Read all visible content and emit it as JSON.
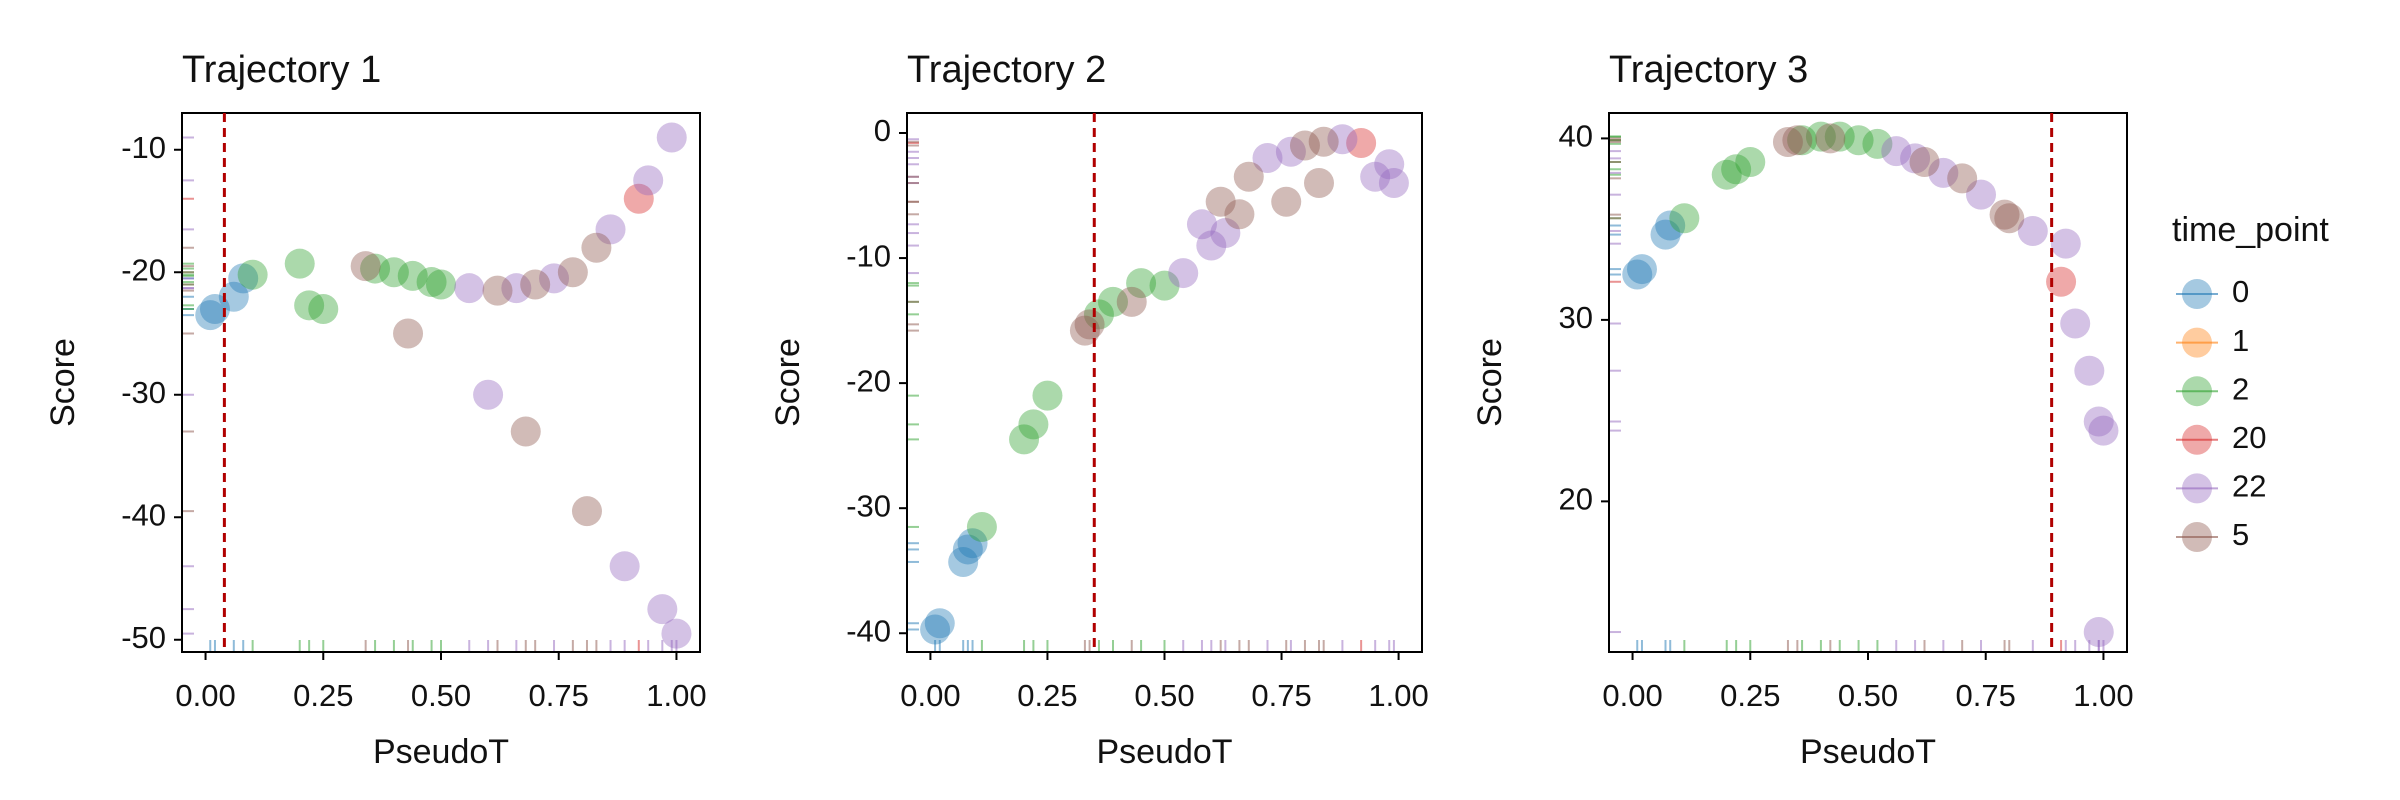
{
  "chart_data": [
    {
      "type": "scatter",
      "title": "Trajectory 1",
      "x_label": "PseudoT",
      "y_label": "Score",
      "xlim": [
        -0.05,
        1.05
      ],
      "xticks": [
        {
          "value": 0,
          "label": "0.00"
        },
        {
          "value": 0.25,
          "label": "0.25"
        },
        {
          "value": 0.5,
          "label": "0.50"
        },
        {
          "value": 0.75,
          "label": "0.75"
        },
        {
          "value": 1,
          "label": "1.00"
        }
      ],
      "ylim": [
        -51,
        -7
      ],
      "yticks": [
        -50,
        -40,
        -30,
        -20,
        -10
      ],
      "vline": 0.04,
      "vline_color": "#b00000",
      "series": [
        {
          "name": "0",
          "color": "#1f77b4",
          "x": [
            0.01,
            0.02,
            0.06,
            0.08
          ],
          "values": [
            -23.5,
            -23,
            -22,
            -20.5
          ]
        },
        {
          "name": "1",
          "color": "#ff7f0e",
          "x": [],
          "values": []
        },
        {
          "name": "2",
          "color": "#2ca02c",
          "x": [
            0.1,
            0.2,
            0.22,
            0.25,
            0.36,
            0.4,
            0.44,
            0.48,
            0.5
          ],
          "values": [
            -20.2,
            -19.3,
            -22.7,
            -23,
            -19.7,
            -20,
            -20.3,
            -20.8,
            -21
          ]
        },
        {
          "name": "20",
          "color": "#d62728",
          "x": [
            0.92
          ],
          "values": [
            -14
          ]
        },
        {
          "name": "22",
          "color": "#9467bd",
          "x": [
            0.56,
            0.6,
            0.66,
            0.74,
            0.86,
            0.89,
            0.94,
            0.97,
            0.99,
            1.0
          ],
          "values": [
            -21.3,
            -30,
            -21.3,
            -20.5,
            -16.5,
            -44,
            -12.5,
            -47.5,
            -9,
            -49.5
          ]
        },
        {
          "name": "5",
          "color": "#8c564b",
          "x": [
            0.34,
            0.43,
            0.62,
            0.68,
            0.7,
            0.78,
            0.81,
            0.83
          ],
          "values": [
            -19.5,
            -25,
            -21.5,
            -33,
            -21,
            -20,
            -39.5,
            -18
          ]
        }
      ]
    },
    {
      "type": "scatter",
      "title": "Trajectory 2",
      "x_label": "PseudoT",
      "y_label": "Score",
      "xlim": [
        -0.05,
        1.05
      ],
      "xticks": [
        {
          "value": 0,
          "label": "0.00"
        },
        {
          "value": 0.25,
          "label": "0.25"
        },
        {
          "value": 0.5,
          "label": "0.50"
        },
        {
          "value": 0.75,
          "label": "0.75"
        },
        {
          "value": 1,
          "label": "1.00"
        }
      ],
      "ylim": [
        -41.5,
        1.6
      ],
      "yticks": [
        -40,
        -30,
        -20,
        -10,
        0
      ],
      "vline": 0.35,
      "vline_color": "#b00000",
      "series": [
        {
          "name": "0",
          "color": "#1f77b4",
          "x": [
            0.01,
            0.02,
            0.07,
            0.08,
            0.09
          ],
          "values": [
            -39.7,
            -39.2,
            -34.3,
            -33.3,
            -32.8
          ]
        },
        {
          "name": "1",
          "color": "#ff7f0e",
          "x": [],
          "values": []
        },
        {
          "name": "2",
          "color": "#2ca02c",
          "x": [
            0.11,
            0.2,
            0.22,
            0.25,
            0.36,
            0.39,
            0.45,
            0.5
          ],
          "values": [
            -31.5,
            -24.5,
            -23.3,
            -21,
            -14.5,
            -13.5,
            -12,
            -12.2
          ]
        },
        {
          "name": "20",
          "color": "#d62728",
          "x": [
            0.92
          ],
          "values": [
            -0.8
          ]
        },
        {
          "name": "22",
          "color": "#9467bd",
          "x": [
            0.54,
            0.58,
            0.6,
            0.63,
            0.72,
            0.77,
            0.88,
            0.95,
            0.98,
            0.99
          ],
          "values": [
            -11.2,
            -7.3,
            -9,
            -8,
            -2,
            -1.5,
            -0.5,
            -3.5,
            -2.5,
            -4
          ]
        },
        {
          "name": "5",
          "color": "#8c564b",
          "x": [
            0.33,
            0.34,
            0.43,
            0.62,
            0.66,
            0.68,
            0.76,
            0.8,
            0.83,
            0.84
          ],
          "values": [
            -15.8,
            -15.3,
            -13.5,
            -5.5,
            -6.5,
            -3.5,
            -5.5,
            -1,
            -4,
            -0.7
          ]
        }
      ]
    },
    {
      "type": "scatter",
      "title": "Trajectory 3",
      "x_label": "PseudoT",
      "y_label": "Score",
      "legend_title": "time_point",
      "xlim": [
        -0.05,
        1.05
      ],
      "xticks": [
        {
          "value": 0,
          "label": "0.00"
        },
        {
          "value": 0.25,
          "label": "0.25"
        },
        {
          "value": 0.5,
          "label": "0.50"
        },
        {
          "value": 0.75,
          "label": "0.75"
        },
        {
          "value": 1,
          "label": "1.00"
        }
      ],
      "ylim": [
        11.7,
        41.4
      ],
      "yticks": [
        20,
        30,
        40
      ],
      "vline": 0.89,
      "vline_color": "#b00000",
      "series": [
        {
          "name": "0",
          "color": "#1f77b4",
          "x": [
            0.01,
            0.02,
            0.07,
            0.08
          ],
          "values": [
            32.5,
            32.8,
            34.7,
            35.2
          ]
        },
        {
          "name": "1",
          "color": "#ff7f0e",
          "x": [],
          "values": []
        },
        {
          "name": "2",
          "color": "#2ca02c",
          "x": [
            0.11,
            0.2,
            0.22,
            0.25,
            0.36,
            0.4,
            0.44,
            0.48,
            0.52
          ],
          "values": [
            35.6,
            38,
            38.3,
            38.7,
            39.9,
            40.1,
            40.1,
            39.9,
            39.7
          ]
        },
        {
          "name": "20",
          "color": "#d62728",
          "x": [
            0.91
          ],
          "values": [
            32.1
          ]
        },
        {
          "name": "22",
          "color": "#9467bd",
          "x": [
            0.56,
            0.6,
            0.66,
            0.74,
            0.85,
            0.92,
            0.94,
            0.97,
            0.99,
            1.0,
            0.99
          ],
          "values": [
            39.3,
            38.9,
            38.1,
            36.9,
            34.9,
            34.2,
            29.8,
            27.2,
            24.4,
            23.9,
            12.8
          ]
        },
        {
          "name": "5",
          "color": "#8c564b",
          "x": [
            0.33,
            0.35,
            0.42,
            0.62,
            0.7,
            0.79,
            0.8
          ],
          "values": [
            39.8,
            39.9,
            40,
            38.7,
            37.8,
            35.8,
            35.6
          ]
        }
      ]
    }
  ]
}
